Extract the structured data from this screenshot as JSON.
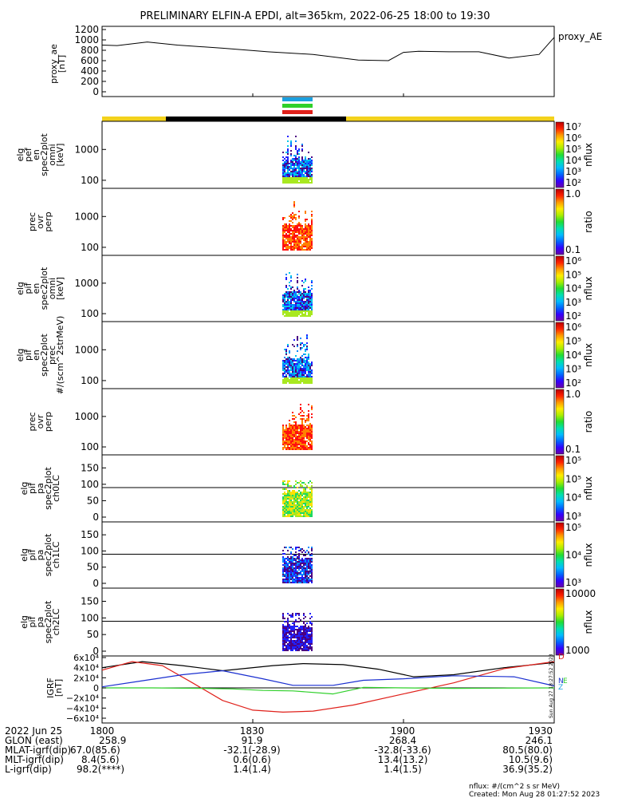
{
  "title": "PRELIMINARY ELFIN-A EPDI, alt=365km, 2022-06-25 18:00 to 19:30",
  "colors": {
    "black": "#000000",
    "blue": "#1a2fd0",
    "green": "#2fd02a",
    "red": "#e0201a",
    "yellow": "#f3d21c",
    "cyan": "#1aa0e0"
  },
  "chart_data": [
    {
      "type": "line",
      "ylabel": "proxy_ae\n[nT]",
      "legend": "proxy_AE",
      "yticks": [
        "1200",
        "1000",
        "800",
        "600",
        "400",
        "200",
        "0"
      ],
      "ylim": [
        0,
        1300
      ],
      "series": [
        {
          "name": "proxy_AE",
          "x": [
            0,
            3,
            9,
            15,
            24,
            33,
            42,
            51,
            57,
            60,
            63,
            69,
            75,
            81,
            87,
            90
          ],
          "values": [
            900,
            890,
            960,
            900,
            840,
            770,
            720,
            610,
            600,
            760,
            780,
            770,
            770,
            650,
            720,
            1050
          ]
        }
      ]
    },
    {
      "type": "heatmap",
      "ylabel": "elg\npef\nen\nspec2plot\nomni\n[keV]",
      "yticks": [
        "1000",
        "100"
      ],
      "cbar_label": "nflux",
      "cbar_ticks": [
        "10^7",
        "10^6",
        "10^5",
        "10^4",
        "10^3",
        "10^2"
      ]
    },
    {
      "type": "heatmap",
      "ylabel": "prec\novr\nperp",
      "yticks": [
        "1000",
        "100"
      ],
      "cbar_label": "ratio",
      "cbar_ticks": [
        "1.0",
        "0.1"
      ]
    },
    {
      "type": "heatmap",
      "ylabel": "elg\npif\nen\nspec2plot\nomni\n[keV]",
      "yticks": [
        "1000",
        "100"
      ],
      "cbar_label": "nflux",
      "cbar_ticks": [
        "10^6",
        "10^5",
        "10^4",
        "10^3",
        "10^2"
      ]
    },
    {
      "type": "heatmap",
      "ylabel": "elg\npif\nen\nspec2plot\nprec\n#/(scm^2strMeV)",
      "yticks": [
        "1000",
        "100"
      ],
      "cbar_label": "nflux",
      "cbar_ticks": [
        "10^6",
        "10^5",
        "10^4",
        "10^3",
        "10^2"
      ]
    },
    {
      "type": "heatmap",
      "ylabel": "prec\novr\nperp",
      "yticks": [
        "1000",
        "100"
      ],
      "cbar_label": "ratio",
      "cbar_ticks": [
        "1.0",
        "0.1"
      ]
    },
    {
      "type": "heatmap",
      "ylabel": "elg\npif\npa\nspec2plot\nch0LC",
      "yticks": [
        "150",
        "100",
        "50",
        "0"
      ],
      "cbar_label": "nflux",
      "cbar_ticks": [
        "10^5",
        "10^5",
        "10^4",
        "10^3"
      ]
    },
    {
      "type": "heatmap",
      "ylabel": "elg\npif\npa\nspec2plot\nch1LC",
      "yticks": [
        "150",
        "100",
        "50",
        "0"
      ],
      "cbar_label": "nflux",
      "cbar_ticks": [
        "10^5",
        "10^4",
        "10^3"
      ]
    },
    {
      "type": "heatmap",
      "ylabel": "elg\npif\npa\nspec2plot\nch2LC",
      "yticks": [
        "150",
        "100",
        "50",
        "0"
      ],
      "cbar_label": "nflux",
      "cbar_ticks": [
        "10000",
        "1000"
      ]
    },
    {
      "type": "line",
      "ylabel": "IGRF\n[nT]",
      "yticks": [
        "6×10^4",
        "4×10^4",
        "2×10^4",
        "0",
        "−2×10^4",
        "−4×10^4",
        "−6×10^4"
      ],
      "ylim": [
        -60000,
        60000
      ],
      "legend": [
        "D",
        "N",
        "E",
        "Z"
      ],
      "series": [
        {
          "name": "black",
          "x": [
            0,
            8,
            16,
            24,
            34,
            40,
            48,
            55,
            62,
            70,
            80,
            90
          ],
          "values": [
            40000,
            52000,
            44000,
            34000,
            44000,
            48000,
            46000,
            37000,
            22000,
            26000,
            40000,
            50000
          ]
        },
        {
          "name": "red",
          "x": [
            0,
            6,
            12,
            18,
            24,
            30,
            36,
            42,
            50,
            60,
            70,
            80,
            90
          ],
          "values": [
            35000,
            52000,
            44000,
            10000,
            -25000,
            -44000,
            -48000,
            -46000,
            -34000,
            -12000,
            10000,
            38000,
            52000
          ]
        },
        {
          "name": "blue",
          "x": [
            0,
            8,
            16,
            24,
            32,
            38,
            46,
            52,
            60,
            70,
            82,
            90
          ],
          "values": [
            2000,
            14000,
            26000,
            34000,
            18000,
            5000,
            5000,
            15000,
            18000,
            24000,
            22000,
            4000
          ]
        },
        {
          "name": "green",
          "x": [
            0,
            10,
            20,
            26,
            32,
            38,
            46,
            52,
            60,
            70,
            80,
            90
          ],
          "values": [
            0,
            0,
            -1000,
            -2000,
            -5000,
            -6000,
            -12000,
            1000,
            0,
            -1000,
            -500,
            0
          ]
        }
      ]
    }
  ],
  "xaxis": {
    "rows": [
      "2022 Jun 25",
      "GLON (east)",
      "MLAT-igrf(dip)",
      "MLT-igrf(dip)",
      "L-igrf(dip)"
    ],
    "cols": [
      {
        "time": "1800",
        "vals": [
          "258.9",
          "67.0(85.6)",
          "8.4(5.6)",
          "98.2(****)"
        ]
      },
      {
        "time": "1830",
        "vals": [
          "91.9",
          "-32.1(-28.9)",
          "0.6(0.6)",
          "1.4(1.4)"
        ]
      },
      {
        "time": "1900",
        "vals": [
          "268.4",
          "-32.8(-33.6)",
          "13.4(13.2)",
          "1.4(1.5)"
        ]
      },
      {
        "time": "1930",
        "vals": [
          "246.1",
          "80.5(80.0)",
          "10.5(9.6)",
          "36.9(35.2)"
        ]
      }
    ]
  },
  "footer": {
    "units": "nflux: #/(cm^2 s sr MeV)",
    "created": "Created: Mon Aug 28 01:27:52 2023",
    "stamp": "Sun Aug 27 18:27:52 2023"
  }
}
